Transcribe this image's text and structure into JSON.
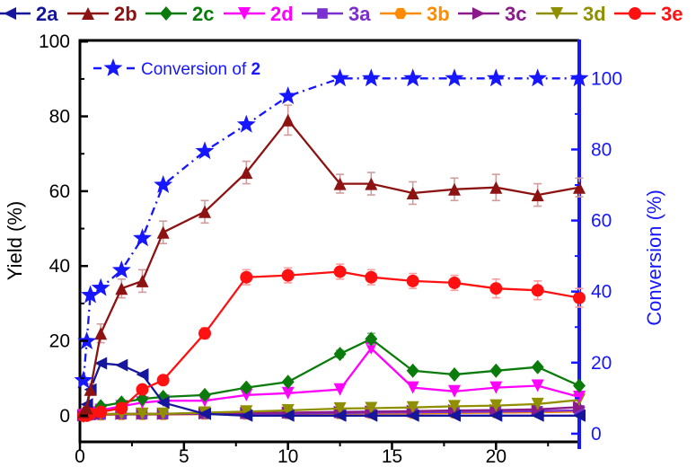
{
  "chart_data": {
    "type": "line",
    "x": [
      0.17,
      0.33,
      0.5,
      1,
      2,
      3,
      4,
      6,
      8,
      10,
      12.5,
      14,
      16,
      18,
      20,
      22,
      24
    ],
    "xlim": [
      0,
      24
    ],
    "x_ticks": [
      0,
      5,
      10,
      15,
      20
    ],
    "x_minor_ticks": [
      2.5,
      7.5,
      12.5,
      17.5,
      22.5
    ],
    "grid": false,
    "legend_position": "top",
    "left_axis": {
      "label": "Yield (%)",
      "ticks": [
        0,
        20,
        40,
        60,
        80,
        100
      ],
      "minor_ticks": [
        10,
        30,
        50,
        70,
        90
      ],
      "lim": [
        -7.0,
        100.3
      ],
      "color": "#000000"
    },
    "right_axis": {
      "label": "Conversion (%)",
      "ticks": [
        0,
        20,
        40,
        60,
        80,
        100
      ],
      "minor_ticks": [
        10,
        30,
        50,
        70,
        90
      ],
      "lim": [
        -2.3,
        110.7
      ],
      "color": "#1616ff"
    },
    "series": [
      {
        "name": "2a",
        "color": "#16169c",
        "marker": "triangle-left",
        "line": "solid",
        "axis": "left",
        "values": [
          1,
          3,
          7,
          14,
          13.5,
          11,
          3.5,
          0.5,
          0,
          0,
          0,
          0,
          0,
          0,
          0,
          0,
          0
        ]
      },
      {
        "name": "2b",
        "color": "#8d1212",
        "marker": "triangle-up",
        "line": "solid",
        "axis": "left",
        "values": [
          1,
          2,
          7,
          22,
          34,
          36,
          49,
          54.5,
          65,
          79,
          62,
          62,
          59.5,
          60.5,
          61,
          59,
          61
        ],
        "err": [
          0,
          0,
          1.5,
          2.5,
          2.5,
          3,
          3,
          3,
          3,
          4,
          2.5,
          3,
          3,
          3,
          3.5,
          3,
          2.5
        ],
        "err_color": "#cf9d9d"
      },
      {
        "name": "2c",
        "color": "#0b7c0b",
        "marker": "diamond",
        "line": "solid",
        "axis": "left",
        "values": [
          0,
          0.5,
          1,
          2.5,
          3.5,
          4.5,
          5,
          5.5,
          7.5,
          9,
          16.5,
          20.5,
          12,
          11,
          12,
          13,
          8
        ],
        "err": [
          0,
          0,
          0,
          0,
          0,
          0,
          0,
          0,
          0,
          0,
          1,
          1.5,
          0,
          0,
          0,
          0,
          0
        ],
        "err_color": "#7fb77f"
      },
      {
        "name": "2d",
        "color": "#ff00ff",
        "marker": "triangle-down",
        "line": "solid",
        "axis": "left",
        "values": [
          0,
          0.3,
          0.8,
          1.5,
          2.5,
          3.5,
          4,
          4,
          5.5,
          6,
          7,
          18,
          7.5,
          6.5,
          7.5,
          8,
          5
        ]
      },
      {
        "name": "3a",
        "color": "#7b2fd0",
        "marker": "square",
        "line": "solid",
        "axis": "left",
        "values": [
          0,
          0.1,
          0.2,
          0.3,
          0.4,
          0.4,
          0.4,
          0.5,
          0.5,
          0.6,
          0.7,
          0.8,
          0.9,
          1,
          1.1,
          1.2,
          1.4
        ]
      },
      {
        "name": "3b",
        "color": "#ff8c00",
        "marker": "hexagon",
        "line": "solid",
        "axis": "left",
        "values": [
          0,
          0.1,
          0.2,
          0.2,
          0.3,
          0.3,
          0.3,
          0.4,
          0.4,
          0.5,
          0.5,
          0.6,
          0.6,
          0.7,
          0.8,
          0.9,
          1.1
        ]
      },
      {
        "name": "3c",
        "color": "#8b1a8b",
        "marker": "triangle-right",
        "line": "solid",
        "axis": "left",
        "values": [
          0.1,
          0.2,
          0.3,
          0.4,
          0.5,
          0.5,
          0.5,
          0.6,
          0.7,
          0.8,
          1,
          1.1,
          1.2,
          1.4,
          1.5,
          1.7,
          2.3
        ]
      },
      {
        "name": "3d",
        "color": "#8f8f00",
        "marker": "triangle-down",
        "line": "solid",
        "axis": "left",
        "values": [
          0.1,
          0.2,
          0.3,
          0.4,
          0.5,
          0.5,
          0.5,
          0.8,
          1.1,
          1.4,
          1.9,
          2,
          2.2,
          2.5,
          2.7,
          3.1,
          4.2
        ]
      },
      {
        "name": "3e",
        "color": "#ff1111",
        "marker": "circle",
        "line": "solid",
        "axis": "left",
        "values": [
          0,
          0,
          0.5,
          1,
          2,
          7,
          9.5,
          22,
          37,
          37.5,
          38.5,
          37,
          36,
          35.5,
          34,
          33.5,
          31.5
        ],
        "err": [
          0,
          0,
          0,
          0,
          0,
          1,
          1,
          1.5,
          2,
          2,
          2,
          2,
          2,
          2,
          2.5,
          2.5,
          2.5
        ],
        "err_color": "#ff9c9c"
      },
      {
        "name": "Conversion of 2",
        "color": "#1616ff",
        "marker": "star",
        "line": "dash-dot",
        "axis": "right",
        "values": [
          15,
          26,
          39,
          41,
          46,
          55,
          70,
          79.5,
          87,
          95,
          100,
          100,
          100,
          100,
          100,
          100,
          100
        ]
      }
    ],
    "top_legend_labels": [
      "2a",
      "2b",
      "2c",
      "2d",
      "3a",
      "3b",
      "3c",
      "3d",
      "3e"
    ],
    "inner_legend": {
      "dash": "-",
      "star_icon": "star",
      "text": "Conversion of ",
      "bold": "2"
    }
  }
}
